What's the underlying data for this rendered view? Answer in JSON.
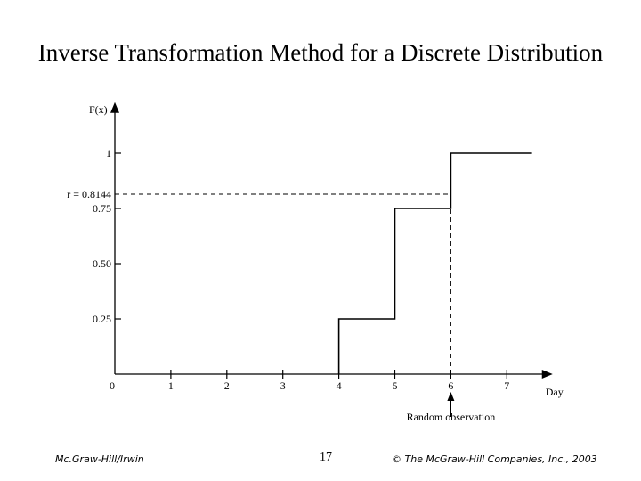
{
  "slide": {
    "title": "Inverse Transformation Method for a Discrete Distribution"
  },
  "footer": {
    "left": "Mc.Graw-Hill/Irwin",
    "page_number": "17",
    "right": "© The McGraw-Hill Companies, Inc., 2003"
  },
  "chart_data": {
    "type": "line",
    "step": true,
    "xlabel": "Day",
    "ylabel": "F(x)",
    "xlim": [
      0,
      7.5
    ],
    "ylim": [
      0,
      1.15
    ],
    "x_ticks": [
      {
        "value": 0,
        "label": "0"
      },
      {
        "value": 1,
        "label": "1"
      },
      {
        "value": 2,
        "label": "2"
      },
      {
        "value": 3,
        "label": "3"
      },
      {
        "value": 4,
        "label": "4"
      },
      {
        "value": 5,
        "label": "5"
      },
      {
        "value": 6,
        "label": "6"
      },
      {
        "value": 7,
        "label": "7"
      }
    ],
    "y_ticks": [
      {
        "value": 0.25,
        "label": "0.25"
      },
      {
        "value": 0.5,
        "label": "0.50"
      },
      {
        "value": 0.75,
        "label": "0.75"
      },
      {
        "value": 1,
        "label": "1"
      }
    ],
    "series": [
      {
        "points": [
          [
            4,
            0
          ],
          [
            4,
            0.25
          ],
          [
            5,
            0.25
          ],
          [
            5,
            0.75
          ],
          [
            6,
            0.75
          ],
          [
            6,
            1
          ],
          [
            7.45,
            1
          ]
        ]
      }
    ],
    "annotations": {
      "r_value": 0.8144,
      "r_label": "r = 0.8144",
      "observation_x": 6,
      "observation_label": "Random observation"
    },
    "grid": false
  }
}
